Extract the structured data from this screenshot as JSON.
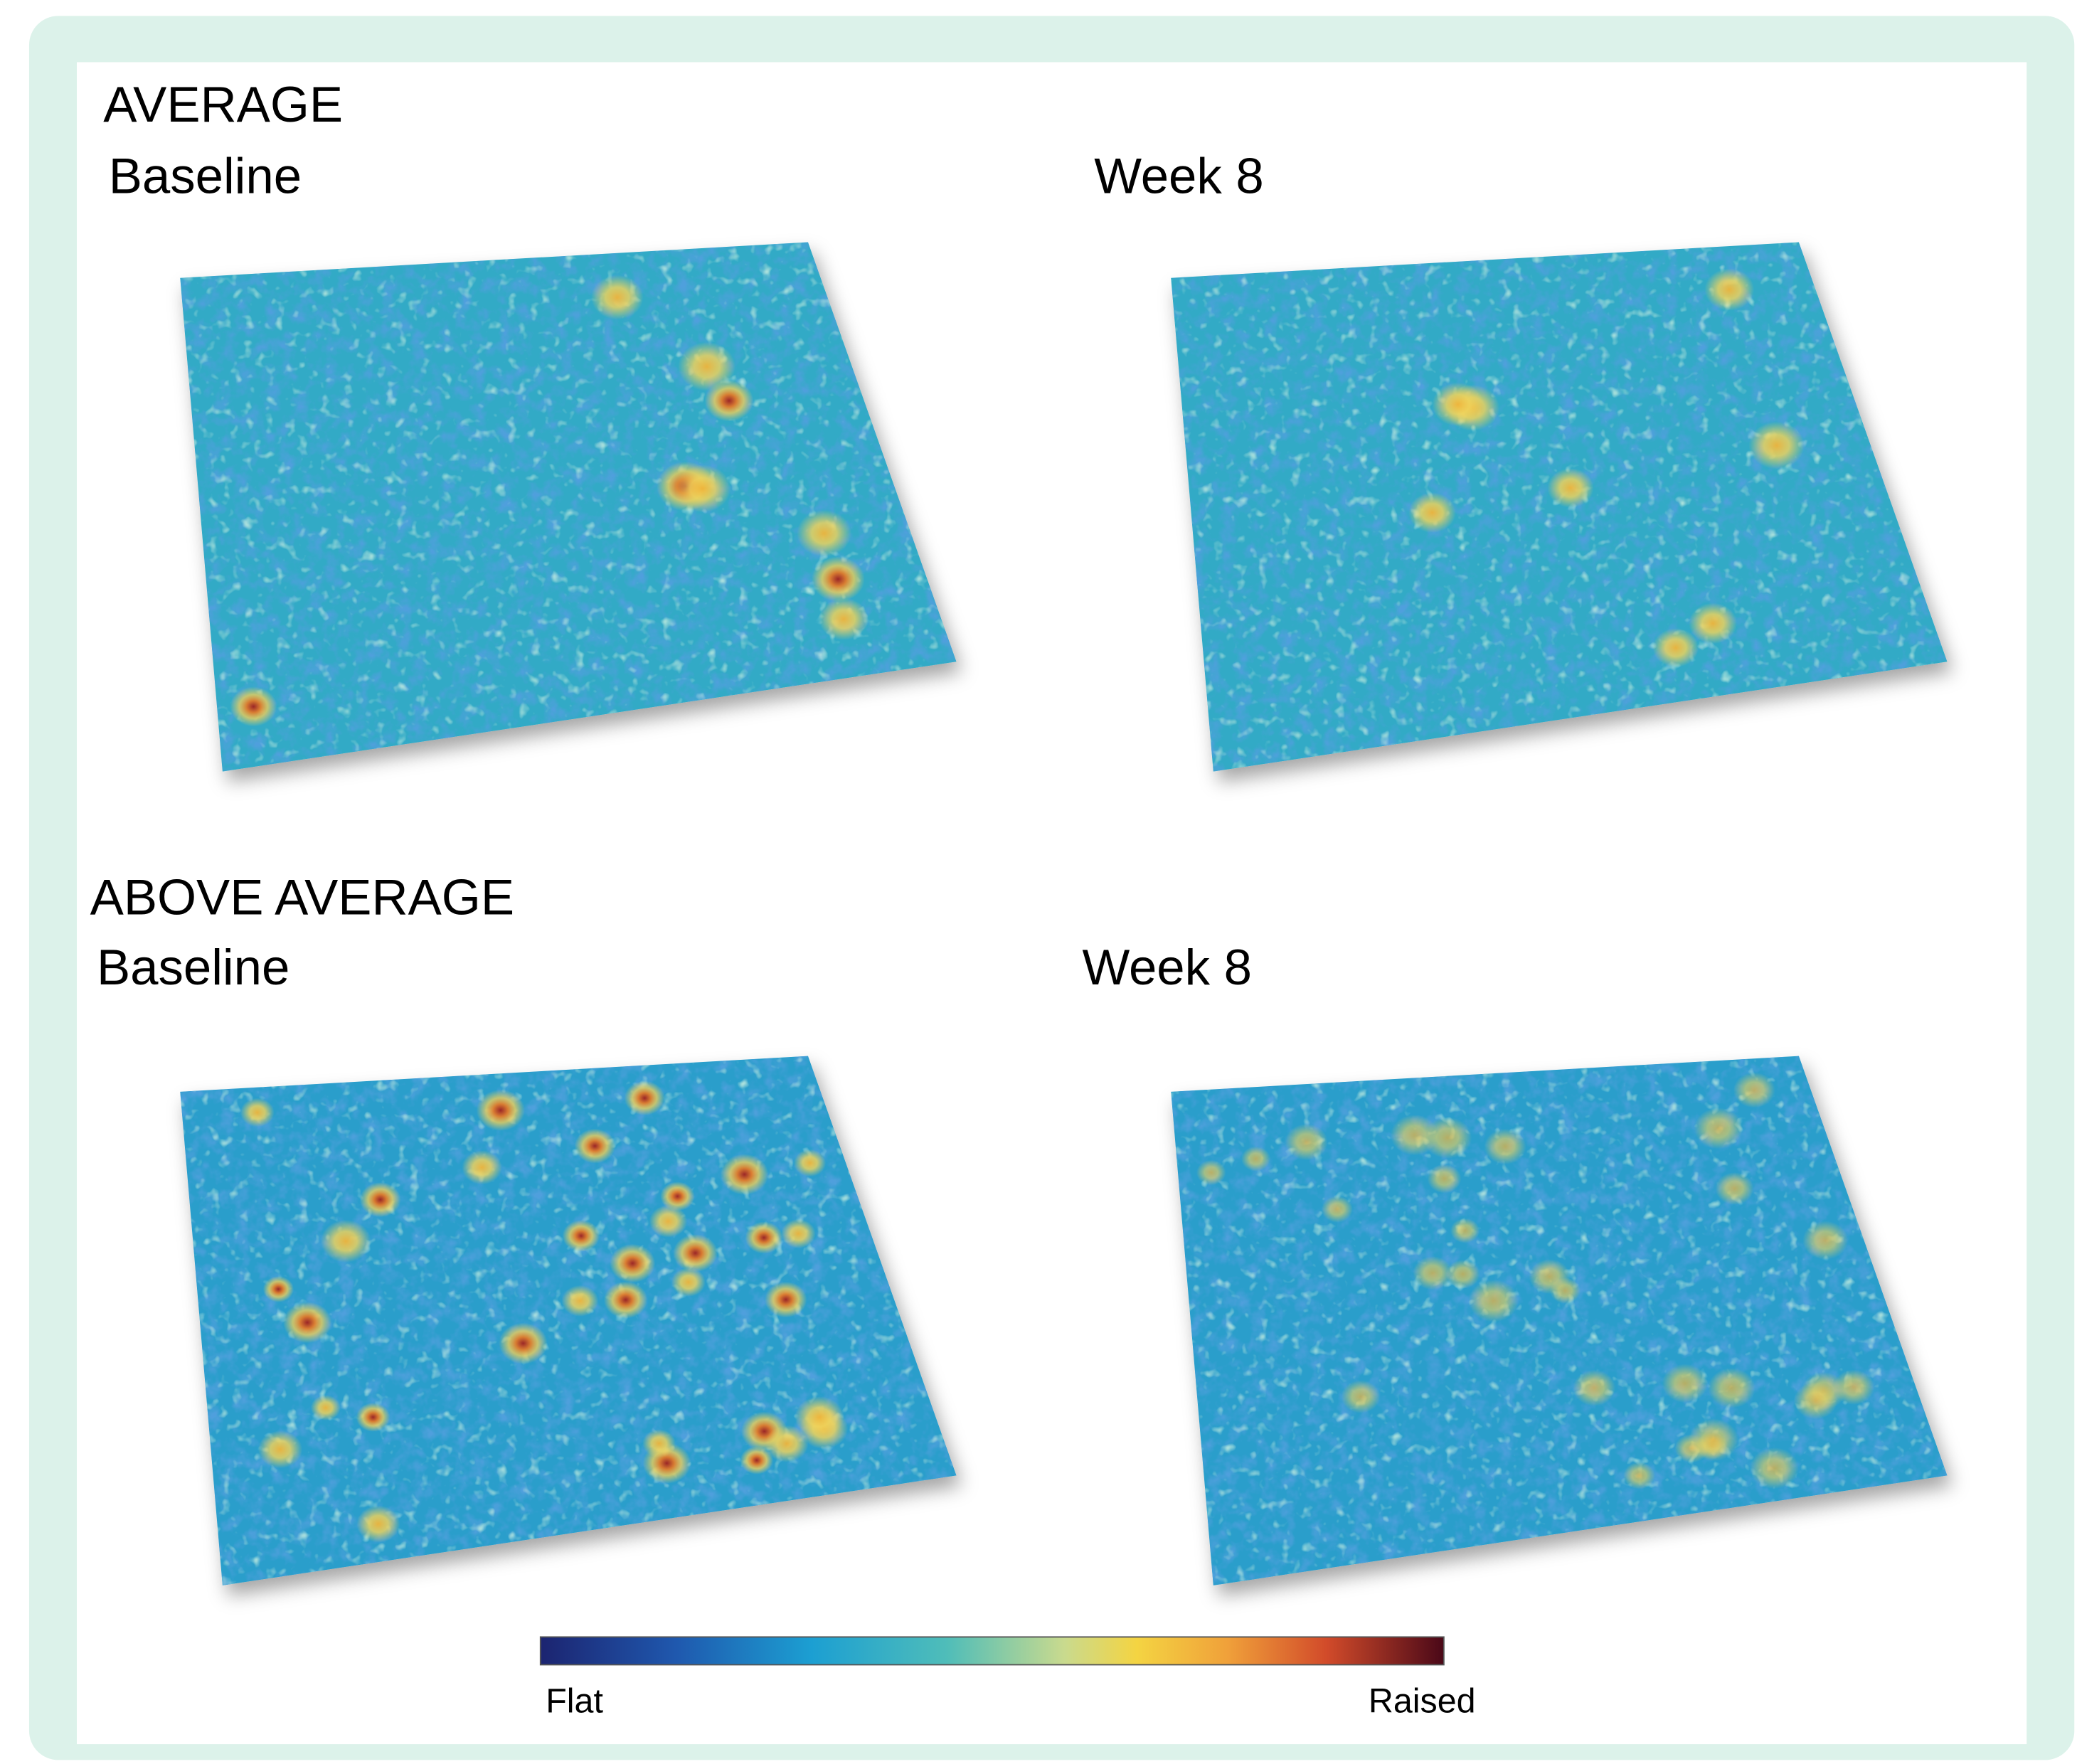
{
  "sections": [
    {
      "title": "AVERAGE",
      "panels": [
        {
          "label": "Baseline"
        },
        {
          "label": "Week 8"
        }
      ]
    },
    {
      "title": "ABOVE AVERAGE",
      "panels": [
        {
          "label": "Baseline"
        },
        {
          "label": "Week 8"
        }
      ]
    }
  ],
  "colorbar": {
    "min_label": "Flat",
    "max_label": "Raised"
  }
}
